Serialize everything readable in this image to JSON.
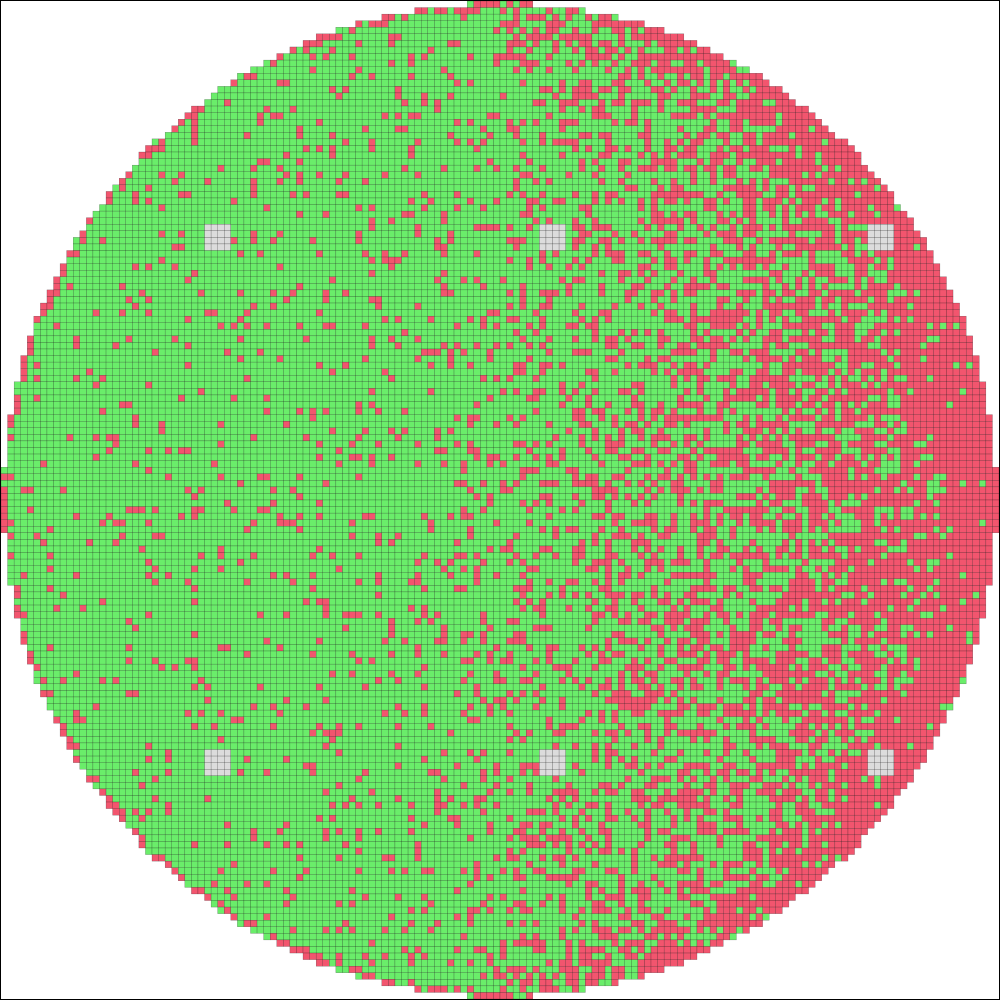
{
  "wafer_map": {
    "colors": {
      "pass": "#6aed6a",
      "fail": "#f2556e",
      "reference": "#dcdcdc",
      "grid_line": "#111111",
      "background": "#ffffff"
    },
    "grid": {
      "columns": 152,
      "rows": 152
    },
    "fail_density": {
      "description_only_for_generation": false,
      "left_region_rate": 0.04,
      "center_region_rate": 0.12,
      "right_region_rate": 0.55,
      "right_edge_rate": 0.85
    },
    "reference_dies": [
      {
        "col": 31,
        "row": 34
      },
      {
        "col": 82,
        "row": 34
      },
      {
        "col": 132,
        "row": 34
      },
      {
        "col": 31,
        "row": 114
      },
      {
        "col": 82,
        "row": 114
      },
      {
        "col": 132,
        "row": 114
      }
    ]
  }
}
